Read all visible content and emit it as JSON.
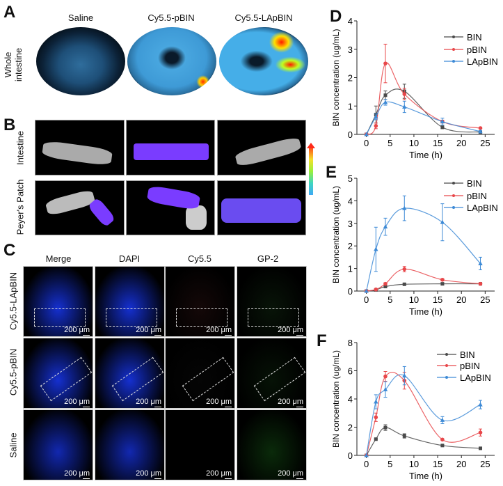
{
  "panels": {
    "A": "A",
    "B": "B",
    "C": "C",
    "D": "D",
    "E": "E",
    "F": "F"
  },
  "panel_a": {
    "columns": [
      "Saline",
      "Cy5.5-pBIN",
      "Cy5.5-LApBIN"
    ],
    "row_label": "Whole intestine"
  },
  "panel_b": {
    "rows": [
      "Intestine",
      "Peyer's Patch"
    ]
  },
  "panel_c": {
    "columns": [
      "Merge",
      "DAPI",
      "Cy5.5",
      "GP-2"
    ],
    "rows": [
      "Cy5.5-LApBIN",
      "Cy5.5-pBIN",
      "Saline"
    ],
    "scale_bar": "200 μm"
  },
  "colors": {
    "BIN": "#4a4a4a",
    "pBIN": "#e8474a",
    "LApBIN": "#3d8ad6"
  },
  "chart_data": [
    {
      "type": "line",
      "panel": "D",
      "xlabel": "Time (h)",
      "ylabel": "BIN concentration (ug/mL)",
      "xlim": [
        -2,
        27
      ],
      "ylim": [
        0,
        4
      ],
      "xticks": [
        0,
        5,
        10,
        15,
        20,
        25
      ],
      "yticks": [
        0,
        1,
        2,
        3,
        4
      ],
      "legend": "top-right",
      "x": [
        0,
        2,
        4,
        8,
        16,
        24
      ],
      "series": [
        {
          "name": "BIN",
          "values": [
            0,
            0.7,
            1.38,
            1.52,
            0.25,
            0.08
          ],
          "error": [
            0,
            0.3,
            0.15,
            0.25,
            0.05,
            0.03
          ]
        },
        {
          "name": "pBIN",
          "values": [
            0,
            0.3,
            2.5,
            1.42,
            0.45,
            0.22
          ],
          "error": [
            0,
            0.1,
            0.68,
            0.2,
            0.05,
            0.03
          ]
        },
        {
          "name": "LApBIN",
          "values": [
            0,
            0.62,
            1.13,
            0.97,
            0.45,
            0.1
          ],
          "error": [
            0,
            0.1,
            0.1,
            0.2,
            0.12,
            0.03
          ]
        }
      ]
    },
    {
      "type": "line",
      "panel": "E",
      "xlabel": "Time (h)",
      "ylabel": "BIN concentration (ug/mL)",
      "xlim": [
        -2,
        27
      ],
      "ylim": [
        0,
        5
      ],
      "xticks": [
        0,
        5,
        10,
        15,
        20,
        25
      ],
      "yticks": [
        0,
        1,
        2,
        3,
        4,
        5
      ],
      "legend": "top-right",
      "x": [
        0,
        2,
        4,
        8,
        16,
        24
      ],
      "series": [
        {
          "name": "BIN",
          "values": [
            0,
            0.05,
            0.2,
            0.3,
            0.32,
            0.32
          ],
          "error": [
            0,
            0.02,
            0.03,
            0.03,
            0.05,
            0.05
          ]
        },
        {
          "name": "pBIN",
          "values": [
            0,
            0.07,
            0.32,
            0.97,
            0.5,
            0.32
          ],
          "error": [
            0,
            0.02,
            0.05,
            0.12,
            0.05,
            0.05
          ]
        },
        {
          "name": "LApBIN",
          "values": [
            0,
            1.85,
            2.85,
            3.67,
            3.05,
            1.22
          ],
          "error": [
            0,
            0.98,
            0.38,
            0.55,
            0.82,
            0.28
          ]
        }
      ]
    },
    {
      "type": "line",
      "panel": "F",
      "xlabel": "Time (h)",
      "ylabel": "BIN concentration (ug/mL)",
      "xlim": [
        -2,
        27
      ],
      "ylim": [
        0,
        8
      ],
      "xticks": [
        0,
        5,
        10,
        15,
        20,
        25
      ],
      "yticks": [
        0,
        2,
        4,
        6,
        8
      ],
      "legend": "top-right",
      "x": [
        0,
        2,
        4,
        8,
        16,
        24
      ],
      "series": [
        {
          "name": "BIN",
          "values": [
            0,
            1.15,
            1.97,
            1.38,
            0.7,
            0.5
          ],
          "error": [
            0,
            0.05,
            0.2,
            0.15,
            0.05,
            0.05
          ]
        },
        {
          "name": "pBIN",
          "values": [
            0,
            2.7,
            5.6,
            5.3,
            1.12,
            1.62
          ],
          "error": [
            0,
            0.3,
            0.35,
            0.6,
            0.05,
            0.25
          ]
        },
        {
          "name": "LApBIN",
          "values": [
            0,
            3.8,
            4.67,
            5.65,
            2.5,
            3.6
          ],
          "error": [
            0,
            0.5,
            0.55,
            0.65,
            0.25,
            0.3
          ]
        }
      ]
    }
  ]
}
